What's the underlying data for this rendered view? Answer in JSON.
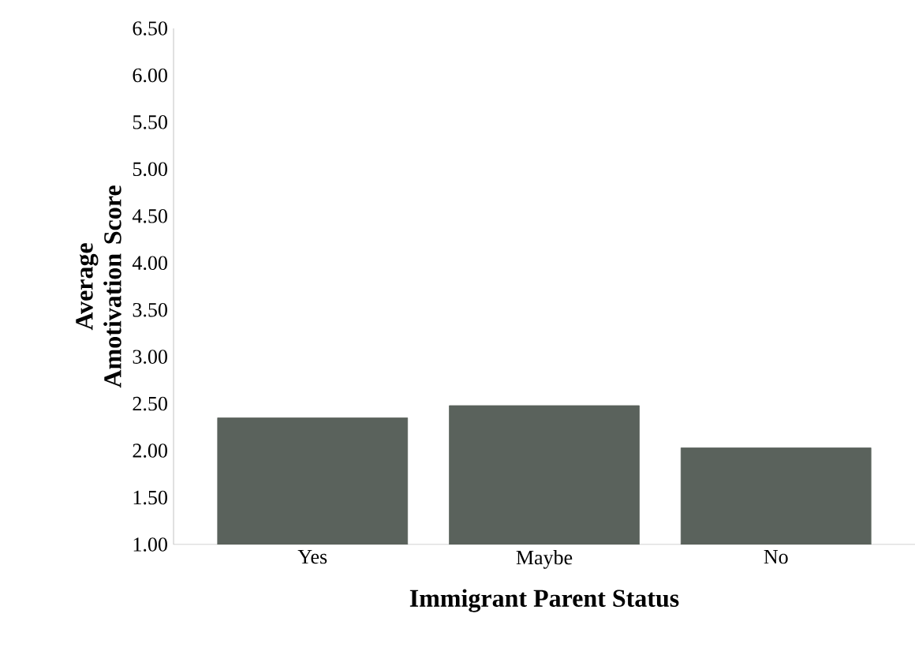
{
  "chart_data": {
    "type": "bar",
    "xlabel": "Immigrant Parent Status",
    "ylabel": "Average Amotivation Score",
    "categories": [
      "Yes",
      "Maybe",
      "No"
    ],
    "values": [
      2.35,
      2.48,
      2.03
    ],
    "color": "#5a625c",
    "ylim": [
      1.0,
      6.5
    ],
    "yticks": [
      {
        "value": 1.0,
        "label": "1.00"
      },
      {
        "value": 1.5,
        "label": "1.50"
      },
      {
        "value": 2.0,
        "label": "2.00"
      },
      {
        "value": 2.5,
        "label": "2.50"
      },
      {
        "value": 3.0,
        "label": "3.00"
      },
      {
        "value": 3.5,
        "label": "3.50"
      },
      {
        "value": 4.0,
        "label": "4.00"
      },
      {
        "value": 4.5,
        "label": "4.50"
      },
      {
        "value": 5.0,
        "label": "5.00"
      },
      {
        "value": 5.5,
        "label": "5.50"
      },
      {
        "value": 6.0,
        "label": "6.00"
      },
      {
        "value": 6.5,
        "label": "6.50"
      }
    ],
    "grid": false
  }
}
